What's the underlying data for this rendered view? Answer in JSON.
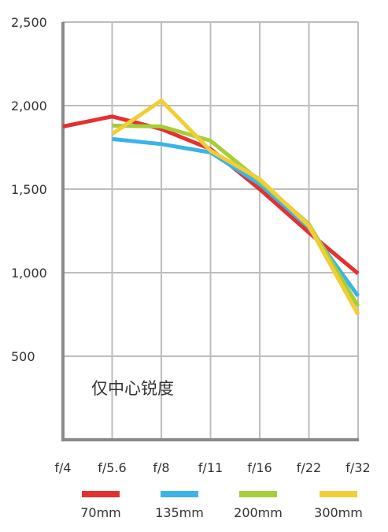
{
  "chart_data": {
    "type": "line",
    "title": "",
    "xlabel": "",
    "ylabel": "",
    "categories": [
      "f/4",
      "f/5.6",
      "f/8",
      "f/11",
      "f/16",
      "f/22",
      "f/32"
    ],
    "ylim": [
      0,
      2500
    ],
    "yticks": [
      500,
      1000,
      1500,
      2000,
      2500
    ],
    "ytick_labels": [
      "500",
      "1,000",
      "1,500",
      "2,000",
      "2,500"
    ],
    "grid": true,
    "annotation": "仅中心锐度",
    "legend_position": "bottom",
    "series": [
      {
        "name": "70mm",
        "color": "#e53030",
        "values": [
          1875,
          1935,
          1860,
          1740,
          1500,
          1240,
          995
        ]
      },
      {
        "name": "135mm",
        "color": "#3bb3e8",
        "values": [
          null,
          1800,
          1770,
          1720,
          1530,
          1270,
          860
        ]
      },
      {
        "name": "200mm",
        "color": "#a6ce39",
        "values": [
          null,
          1880,
          1875,
          1790,
          1550,
          1290,
          800
        ]
      },
      {
        "name": "300mm",
        "color": "#f2cd36",
        "values": [
          null,
          1830,
          2030,
          1730,
          1560,
          1280,
          750
        ]
      }
    ]
  }
}
